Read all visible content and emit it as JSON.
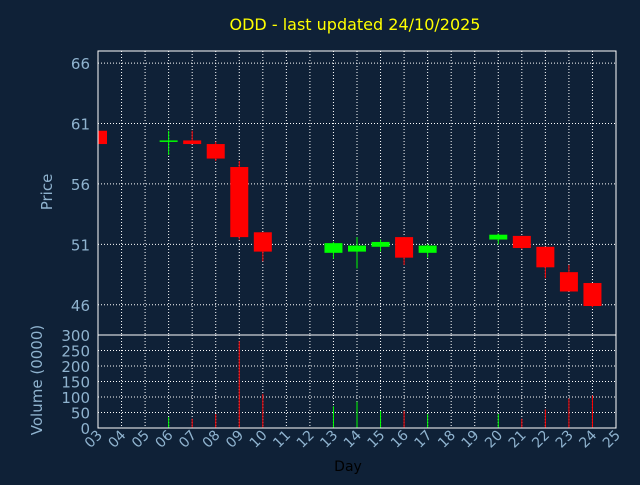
{
  "chart_data": {
    "type": "candlestick",
    "title": "ODD - last updated 24/10/2025",
    "xlabel": "Day",
    "x_ticks": [
      "03",
      "04",
      "05",
      "06",
      "07",
      "08",
      "09",
      "10",
      "11",
      "12",
      "13",
      "14",
      "15",
      "16",
      "17",
      "18",
      "19",
      "20",
      "21",
      "22",
      "23",
      "24",
      "25"
    ],
    "price_panel": {
      "ylabel": "Price",
      "ylim": [
        43.5,
        67
      ],
      "y_ticks": [
        46,
        51,
        56,
        61,
        66
      ],
      "grid": true,
      "candles": [
        {
          "day": 3,
          "open": 60.4,
          "close": 59.3,
          "high": 60.4,
          "low": 59.3
        },
        {
          "day": 6,
          "open": 59.6,
          "close": 59.6,
          "high": 60.4,
          "low": 58.4
        },
        {
          "day": 7,
          "open": 59.6,
          "close": 59.3,
          "high": 60.4,
          "low": 59.3
        },
        {
          "day": 8,
          "open": 59.3,
          "close": 58.1,
          "high": 59.5,
          "low": 57.9
        },
        {
          "day": 9,
          "open": 57.4,
          "close": 51.6,
          "high": 57.9,
          "low": 51.4
        },
        {
          "day": 10,
          "open": 52.0,
          "close": 50.4,
          "high": 52.0,
          "low": 49.6
        },
        {
          "day": 13,
          "open": 50.3,
          "close": 51.1,
          "high": 51.2,
          "low": 49.8
        },
        {
          "day": 14,
          "open": 50.4,
          "close": 50.9,
          "high": 51.6,
          "low": 49.0
        },
        {
          "day": 15,
          "open": 50.8,
          "close": 51.2,
          "high": 51.4,
          "low": 50.4
        },
        {
          "day": 16,
          "open": 51.6,
          "close": 49.9,
          "high": 51.6,
          "low": 49.3
        },
        {
          "day": 17,
          "open": 50.3,
          "close": 50.9,
          "high": 51.0,
          "low": 49.9
        },
        {
          "day": 20,
          "open": 51.4,
          "close": 51.8,
          "high": 51.9,
          "low": 51.0
        },
        {
          "day": 21,
          "open": 51.7,
          "close": 50.7,
          "high": 51.7,
          "low": 50.6
        },
        {
          "day": 22,
          "open": 50.8,
          "close": 49.1,
          "high": 50.8,
          "low": 48.2
        },
        {
          "day": 23,
          "open": 48.7,
          "close": 47.1,
          "high": 49.3,
          "low": 47.1
        },
        {
          "day": 24,
          "open": 47.8,
          "close": 45.9,
          "high": 47.8,
          "low": 45.8
        }
      ]
    },
    "volume_panel": {
      "ylabel": "Volume (0000)",
      "ylim": [
        0,
        300
      ],
      "y_ticks": [
        0,
        50,
        100,
        150,
        200,
        250,
        300
      ],
      "grid": true,
      "bars": [
        {
          "day": 6,
          "value": 35,
          "up": true
        },
        {
          "day": 7,
          "value": 30,
          "up": false
        },
        {
          "day": 8,
          "value": 45,
          "up": false
        },
        {
          "day": 9,
          "value": 280,
          "up": false
        },
        {
          "day": 10,
          "value": 110,
          "up": false
        },
        {
          "day": 13,
          "value": 70,
          "up": true
        },
        {
          "day": 14,
          "value": 85,
          "up": true
        },
        {
          "day": 15,
          "value": 55,
          "up": true
        },
        {
          "day": 16,
          "value": 55,
          "up": false
        },
        {
          "day": 17,
          "value": 45,
          "up": true
        },
        {
          "day": 20,
          "value": 45,
          "up": true
        },
        {
          "day": 21,
          "value": 30,
          "up": false
        },
        {
          "day": 22,
          "value": 60,
          "up": false
        },
        {
          "day": 23,
          "value": 95,
          "up": false
        },
        {
          "day": 24,
          "value": 105,
          "up": false
        }
      ]
    },
    "colors": {
      "background": "#0f2137",
      "up": "#00ff00",
      "down": "#ff0000",
      "grid": "#ffffff",
      "title": "#ffff00",
      "axis_text": "#8fb3cf",
      "frame": "#ffffff"
    }
  }
}
